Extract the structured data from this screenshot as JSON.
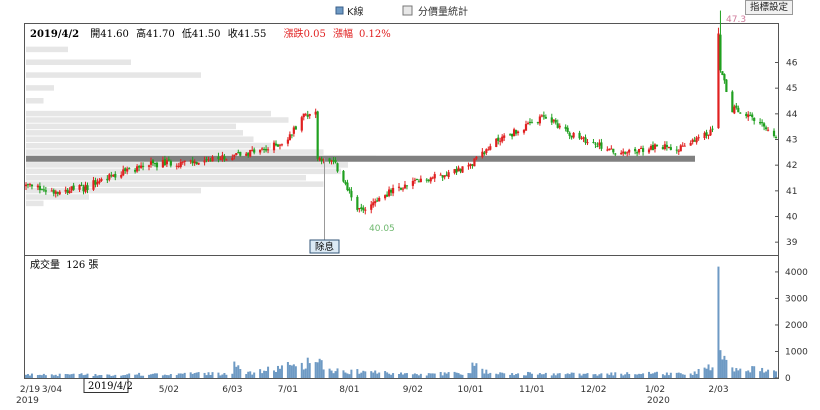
{
  "legend": {
    "kline_label": "K線",
    "volume_profile_label": "分價量統計"
  },
  "settings_button": "指標設定",
  "info_bar": {
    "date": "2019/4/2",
    "open_label": "開",
    "open": "41.60",
    "high_label": "高",
    "high": "41.70",
    "low_label": "低",
    "low": "41.50",
    "close_label": "收",
    "close": "41.55",
    "change_label": "漲跌",
    "change": "0.05",
    "pct_label": "漲幅",
    "pct": "0.12%"
  },
  "volume_info": {
    "label": "成交量",
    "value": "126",
    "unit": "張"
  },
  "annotations": {
    "low_value": "40.05",
    "high_value": "47.3",
    "dividend_marker": "除息"
  },
  "cursor_date": "2019/4/2",
  "colors": {
    "up": "#e02020",
    "down": "#20a020",
    "volume": "#6e9ac4",
    "profile": "#e6e6e6",
    "poc": "#808080"
  },
  "chart_data": [
    {
      "type": "candlestick",
      "ylim": [
        38.5,
        47.5
      ],
      "yticks": [
        39,
        40,
        41,
        42,
        43,
        44,
        45,
        46
      ],
      "x_labels": [
        "2/19",
        "3/04",
        "4/02",
        "5/02",
        "6/03",
        "7/01",
        "8/01",
        "9/02",
        "10/01",
        "11/01",
        "12/02",
        "1/02",
        "2/03"
      ],
      "year_labels": [
        "2019",
        "2020"
      ],
      "price_path": [
        [
          "2019-02-19",
          41.2
        ],
        [
          "2019-03-04",
          41.0
        ],
        [
          "2019-03-20",
          41.1
        ],
        [
          "2019-04-02",
          41.55
        ],
        [
          "2019-04-20",
          42.0
        ],
        [
          "2019-05-02",
          42.1
        ],
        [
          "2019-05-20",
          42.1
        ],
        [
          "2019-06-03",
          42.4
        ],
        [
          "2019-06-20",
          42.6
        ],
        [
          "2019-07-01",
          43.0
        ],
        [
          "2019-07-08",
          43.9
        ],
        [
          "2019-07-15",
          44.1
        ],
        [
          "2019-07-16",
          42.3
        ],
        [
          "2019-07-25",
          42.0
        ],
        [
          "2019-08-06",
          40.2
        ],
        [
          "2019-08-20",
          40.9
        ],
        [
          "2019-09-02",
          41.3
        ],
        [
          "2019-09-20",
          41.7
        ],
        [
          "2019-10-01",
          42.0
        ],
        [
          "2019-10-15",
          43.0
        ],
        [
          "2019-11-01",
          43.6
        ],
        [
          "2019-11-08",
          43.9
        ],
        [
          "2019-11-25",
          43.0
        ],
        [
          "2019-12-02",
          42.9
        ],
        [
          "2019-12-15",
          42.4
        ],
        [
          "2020-01-02",
          42.7
        ],
        [
          "2020-01-15",
          42.7
        ],
        [
          "2020-01-25",
          43.0
        ],
        [
          "2020-01-31",
          43.4
        ],
        [
          "2020-02-03",
          47.3
        ],
        [
          "2020-02-05",
          45.5
        ],
        [
          "2020-02-10",
          44.2
        ],
        [
          "2020-02-20",
          43.8
        ],
        [
          "2020-03-03",
          43.1
        ]
      ],
      "extremes": {
        "low": 40.05,
        "high": 47.3
      },
      "volume_profile": [
        [
          46.5,
          0.12
        ],
        [
          46.0,
          0.3
        ],
        [
          45.5,
          0.5
        ],
        [
          45.0,
          0.08
        ],
        [
          44.5,
          0.05
        ],
        [
          44.0,
          0.7
        ],
        [
          43.75,
          0.75
        ],
        [
          43.5,
          0.6
        ],
        [
          43.25,
          0.62
        ],
        [
          43.0,
          0.65
        ],
        [
          42.75,
          0.7
        ],
        [
          42.5,
          0.85
        ],
        [
          42.25,
          1.0
        ],
        [
          42.0,
          0.92
        ],
        [
          41.75,
          0.9
        ],
        [
          41.5,
          0.8
        ],
        [
          41.25,
          0.85
        ],
        [
          41.0,
          0.5
        ],
        [
          40.75,
          0.18
        ],
        [
          40.5,
          0.05
        ]
      ],
      "poc_price": 42.25
    },
    {
      "type": "bar",
      "ylim": [
        0,
        4600
      ],
      "yticks": [
        0,
        1000,
        2000,
        3000,
        4000
      ],
      "volume_path": [
        [
          "2019-02-19",
          120
        ],
        [
          "2019-04-02",
          126
        ],
        [
          "2019-06-03",
          160
        ],
        [
          "2019-06-04",
          620
        ],
        [
          "2019-06-10",
          150
        ],
        [
          "2019-07-15",
          600
        ],
        [
          "2019-07-25",
          260
        ],
        [
          "2019-09-02",
          140
        ],
        [
          "2019-10-01",
          180
        ],
        [
          "2019-10-02",
          580
        ],
        [
          "2019-10-10",
          160
        ],
        [
          "2019-12-02",
          140
        ],
        [
          "2020-01-20",
          170
        ],
        [
          "2020-01-31",
          400
        ],
        [
          "2020-02-03",
          4200
        ],
        [
          "2020-02-04",
          1050
        ],
        [
          "2020-02-05",
          700
        ],
        [
          "2020-02-10",
          400
        ],
        [
          "2020-03-03",
          250
        ]
      ]
    }
  ]
}
